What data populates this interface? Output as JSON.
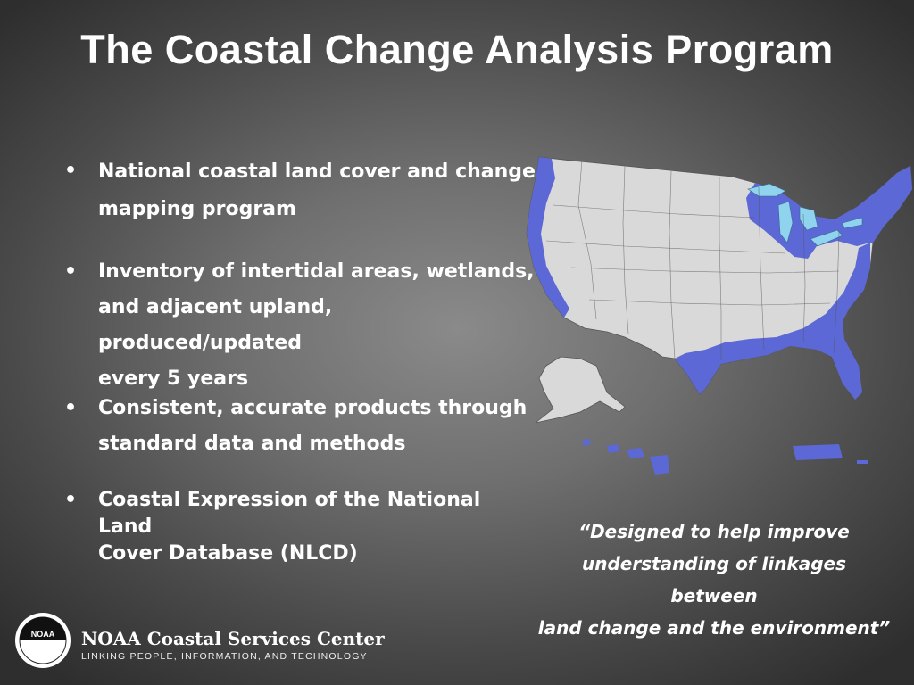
{
  "slide": {
    "title": "The Coastal Change Analysis Program",
    "bullets": [
      {
        "lines": [
          "National coastal land cover and change",
          "mapping program"
        ]
      },
      {
        "lines": [
          "Inventory of intertidal areas, wetlands,",
          "and adjacent upland, produced/updated",
          "every 5 years"
        ]
      },
      {
        "lines": [
          "Consistent, accurate products through",
          "standard data and methods"
        ]
      },
      {
        "lines": [
          "Coastal Expression of the National Land",
          "Cover Database (NLCD)"
        ]
      }
    ],
    "bullet_symbol": "•",
    "quote_lines": [
      "“Designed to help improve",
      "understanding of linkages between",
      "land change and the environment”"
    ]
  },
  "map": {
    "land_color": "#d9d9d9",
    "coastal_zone_color": "#5b68d6",
    "water_color": "#8fd3ef",
    "border_color": "#555555"
  },
  "footer": {
    "logo_text": "NOAA",
    "org_name": "NOAA Coastal Services Center",
    "tagline": "LINKING PEOPLE, INFORMATION, AND TECHNOLOGY"
  }
}
